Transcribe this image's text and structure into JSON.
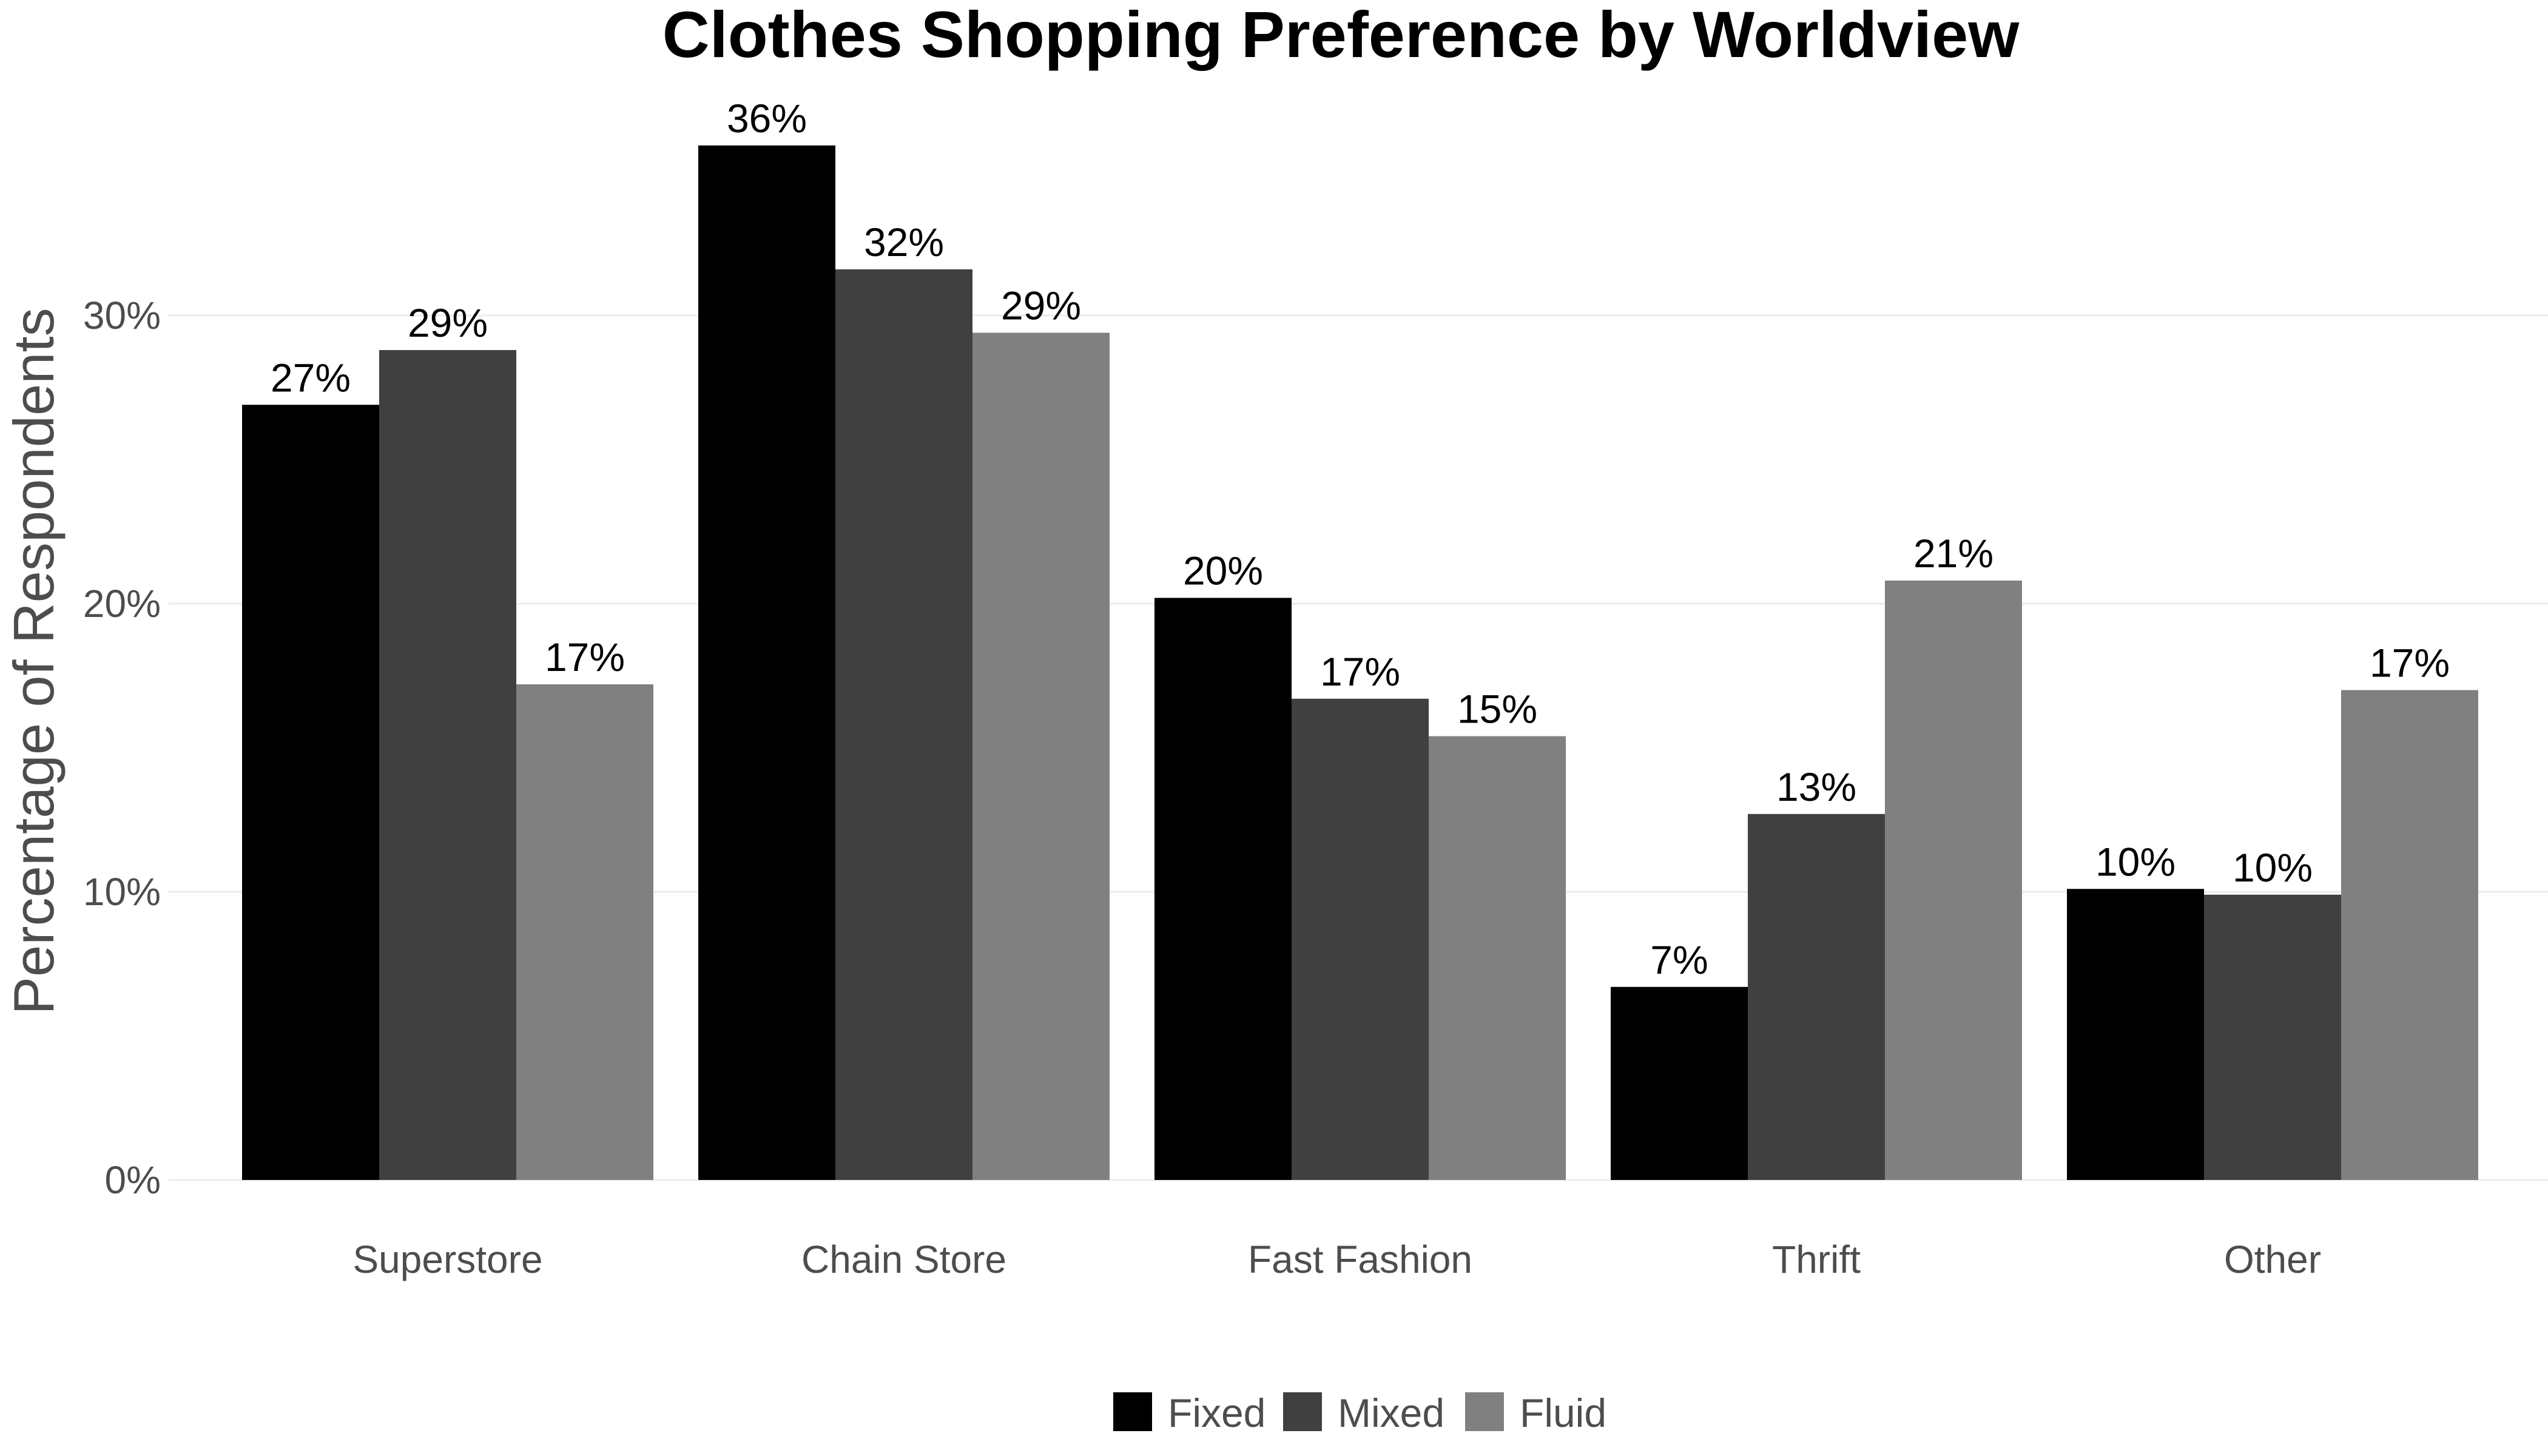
{
  "chart_data": {
    "type": "bar",
    "title": "Clothes Shopping Preference by Worldview",
    "xlabel": "",
    "ylabel": "Percentage of Respondents",
    "categories": [
      "Superstore",
      "Chain Store",
      "Fast Fashion",
      "Thrift",
      "Other"
    ],
    "series": [
      {
        "name": "Fixed",
        "color": "#000000",
        "values": [
          26.9,
          35.9,
          20.2,
          6.7,
          10.1
        ],
        "labels": [
          "27%",
          "36%",
          "20%",
          "7%",
          "10%"
        ]
      },
      {
        "name": "Mixed",
        "color": "#404040",
        "values": [
          28.8,
          31.6,
          16.7,
          12.7,
          9.9
        ],
        "labels": [
          "29%",
          "32%",
          "17%",
          "13%",
          "10%"
        ]
      },
      {
        "name": "Fluid",
        "color": "#808080",
        "values": [
          17.2,
          29.4,
          15.4,
          20.8,
          17.0
        ],
        "labels": [
          "17%",
          "29%",
          "15%",
          "21%",
          "17%"
        ]
      }
    ],
    "yticks": [
      0,
      10,
      20,
      30
    ],
    "ytick_labels": [
      "0%",
      "10%",
      "20%",
      "30%"
    ],
    "ylim": [
      0,
      38
    ],
    "grid": true,
    "legend_position": "bottom"
  }
}
